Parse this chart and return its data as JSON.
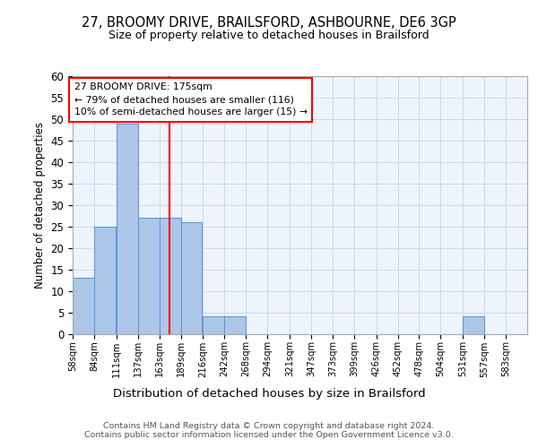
{
  "title1": "27, BROOMY DRIVE, BRAILSFORD, ASHBOURNE, DE6 3GP",
  "title2": "Size of property relative to detached houses in Brailsford",
  "xlabel": "Distribution of detached houses by size in Brailsford",
  "ylabel": "Number of detached properties",
  "bins": [
    58,
    84,
    111,
    137,
    163,
    189,
    216,
    242,
    268,
    294,
    321,
    347,
    373,
    399,
    426,
    452,
    478,
    504,
    531,
    557,
    583
  ],
  "counts": [
    13,
    25,
    49,
    27,
    27,
    26,
    4,
    4,
    0,
    0,
    0,
    0,
    0,
    0,
    0,
    0,
    0,
    0,
    4,
    0,
    0
  ],
  "bar_color": "#aec6e8",
  "bar_edge_color": "#5b9bd5",
  "red_line_x": 175,
  "annotation_text": "27 BROOMY DRIVE: 175sqm\n← 79% of detached houses are smaller (116)\n10% of semi-detached houses are larger (15) →",
  "annotation_box_color": "white",
  "annotation_box_edge": "red",
  "ylim": [
    0,
    60
  ],
  "yticks": [
    0,
    5,
    10,
    15,
    20,
    25,
    30,
    35,
    40,
    45,
    50,
    55,
    60
  ],
  "footer": "Contains HM Land Registry data © Crown copyright and database right 2024.\nContains public sector information licensed under the Open Government Licence v3.0.",
  "bg_color": "#eef4fc",
  "grid_color": "#c8d8f0"
}
